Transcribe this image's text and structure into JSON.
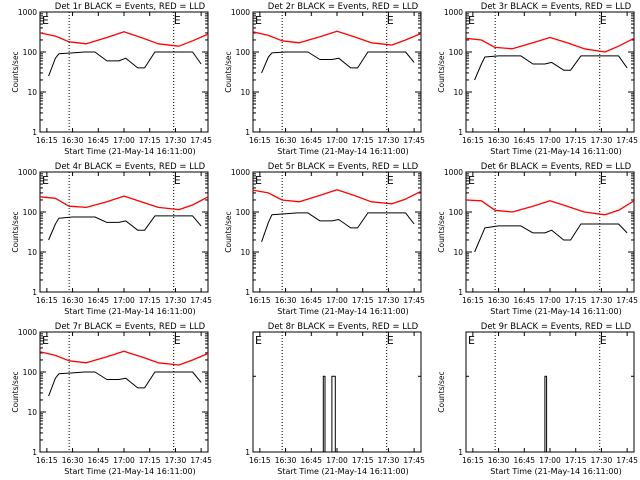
{
  "colors": {
    "events": "#000000",
    "lld": "#ff0000",
    "frame": "#000000",
    "marker": "#000000"
  },
  "xtick_labels": [
    "16:15",
    "16:30",
    "16:45",
    "17:00",
    "17:15",
    "17:30",
    "17:45"
  ],
  "ytick_labels": [
    "1",
    "10",
    "100",
    "1000"
  ],
  "xlabel": "Start Time (21-May-14 16:11:00)",
  "ylabel": "Counts/sec",
  "marker_letter": "E",
  "panels": [
    {
      "title": "Det 1r BLACK = Events, RED = LLD",
      "show_ylabel": true
    },
    {
      "title": "Det 2r BLACK = Events, RED = LLD",
      "show_ylabel": true
    },
    {
      "title": "Det 3r BLACK = Events, RED = LLD",
      "show_ylabel": true
    },
    {
      "title": "Det 4r BLACK = Events, RED = LLD",
      "show_ylabel": true
    },
    {
      "title": "Det 5r BLACK = Events, RED = LLD",
      "show_ylabel": true
    },
    {
      "title": "Det 6r BLACK = Events, RED = LLD",
      "show_ylabel": true
    },
    {
      "title": "Det 7r BLACK = Events, RED = LLD",
      "show_ylabel": true
    },
    {
      "title": "Det 8r BLACK = Events, RED = LLD",
      "show_ylabel": false
    },
    {
      "title": "Det 9r BLACK = Events, RED = LLD",
      "show_ylabel": true
    }
  ],
  "chart_data": [
    {
      "panel": "Det 1r",
      "type": "line",
      "x_range": [
        "16:11",
        "17:49"
      ],
      "ylim": [
        1,
        1000
      ],
      "y_scale": "log",
      "markers_x": [
        "16:28",
        "17:29"
      ],
      "series": [
        {
          "name": "LLD",
          "color": "#ff0000",
          "x": [
            "16:11",
            "16:20",
            "16:28",
            "16:38",
            "16:50",
            "17:00",
            "17:10",
            "17:20",
            "17:32",
            "17:40",
            "17:49"
          ],
          "y": [
            300,
            250,
            180,
            160,
            230,
            320,
            230,
            160,
            140,
            190,
            280
          ]
        },
        {
          "name": "Events",
          "color": "#000000",
          "x": [
            "16:16",
            "16:20",
            "16:22",
            "16:30",
            "16:37",
            "16:43",
            "16:50",
            "16:57",
            "17:01",
            "17:08",
            "17:12",
            "17:18",
            "17:30",
            "17:40",
            "17:45"
          ],
          "y": [
            25,
            70,
            90,
            95,
            100,
            100,
            60,
            60,
            70,
            40,
            40,
            100,
            100,
            100,
            50
          ]
        }
      ]
    },
    {
      "panel": "Det 2r",
      "type": "line",
      "x_range": [
        "16:11",
        "17:49"
      ],
      "ylim": [
        1,
        1000
      ],
      "y_scale": "log",
      "markers_x": [
        "16:28",
        "17:29"
      ],
      "series": [
        {
          "name": "LLD",
          "color": "#ff0000",
          "x": [
            "16:11",
            "16:20",
            "16:28",
            "16:38",
            "16:50",
            "17:00",
            "17:10",
            "17:20",
            "17:32",
            "17:40",
            "17:49"
          ],
          "y": [
            320,
            260,
            190,
            170,
            240,
            330,
            240,
            170,
            150,
            200,
            290
          ]
        },
        {
          "name": "Events",
          "color": "#000000",
          "x": [
            "16:16",
            "16:20",
            "16:22",
            "16:30",
            "16:37",
            "16:43",
            "16:50",
            "16:57",
            "17:01",
            "17:08",
            "17:12",
            "17:18",
            "17:30",
            "17:40",
            "17:45"
          ],
          "y": [
            30,
            75,
            95,
            100,
            100,
            100,
            65,
            65,
            70,
            40,
            40,
            100,
            100,
            100,
            55
          ]
        }
      ]
    },
    {
      "panel": "Det 3r",
      "type": "line",
      "x_range": [
        "16:11",
        "17:49"
      ],
      "ylim": [
        1,
        1000
      ],
      "y_scale": "log",
      "markers_x": [
        "16:28",
        "17:29"
      ],
      "series": [
        {
          "name": "LLD",
          "color": "#ff0000",
          "x": [
            "16:11",
            "16:20",
            "16:28",
            "16:38",
            "16:50",
            "17:00",
            "17:10",
            "17:20",
            "17:32",
            "17:40",
            "17:49"
          ],
          "y": [
            220,
            200,
            130,
            120,
            170,
            230,
            170,
            120,
            100,
            140,
            220
          ]
        },
        {
          "name": "Events",
          "color": "#000000",
          "x": [
            "16:16",
            "16:20",
            "16:22",
            "16:30",
            "16:37",
            "16:43",
            "16:50",
            "16:57",
            "17:01",
            "17:08",
            "17:12",
            "17:18",
            "17:30",
            "17:40",
            "17:45"
          ],
          "y": [
            20,
            50,
            75,
            80,
            80,
            80,
            50,
            50,
            55,
            35,
            35,
            80,
            80,
            80,
            40
          ]
        }
      ]
    },
    {
      "panel": "Det 4r",
      "type": "line",
      "x_range": [
        "16:11",
        "17:49"
      ],
      "ylim": [
        1,
        1000
      ],
      "y_scale": "log",
      "markers_x": [
        "16:28",
        "17:29"
      ],
      "series": [
        {
          "name": "LLD",
          "color": "#ff0000",
          "x": [
            "16:11",
            "16:20",
            "16:28",
            "16:38",
            "16:50",
            "17:00",
            "17:10",
            "17:20",
            "17:32",
            "17:40",
            "17:49"
          ],
          "y": [
            240,
            220,
            140,
            130,
            180,
            250,
            180,
            130,
            115,
            150,
            240
          ]
        },
        {
          "name": "Events",
          "color": "#000000",
          "x": [
            "16:16",
            "16:20",
            "16:22",
            "16:30",
            "16:37",
            "16:43",
            "16:50",
            "16:57",
            "17:01",
            "17:08",
            "17:12",
            "17:18",
            "17:30",
            "17:40",
            "17:45"
          ],
          "y": [
            20,
            50,
            70,
            75,
            75,
            75,
            55,
            55,
            60,
            35,
            35,
            80,
            80,
            80,
            45
          ]
        }
      ]
    },
    {
      "panel": "Det 5r",
      "type": "line",
      "x_range": [
        "16:11",
        "17:49"
      ],
      "ylim": [
        1,
        1000
      ],
      "y_scale": "log",
      "markers_x": [
        "16:28",
        "17:29"
      ],
      "series": [
        {
          "name": "LLD",
          "color": "#ff0000",
          "x": [
            "16:11",
            "16:20",
            "16:28",
            "16:38",
            "16:50",
            "17:00",
            "17:10",
            "17:20",
            "17:32",
            "17:40",
            "17:49"
          ],
          "y": [
            350,
            300,
            200,
            180,
            260,
            360,
            260,
            180,
            160,
            210,
            330
          ]
        },
        {
          "name": "Events",
          "color": "#000000",
          "x": [
            "16:16",
            "16:20",
            "16:22",
            "16:30",
            "16:37",
            "16:43",
            "16:50",
            "16:57",
            "17:01",
            "17:08",
            "17:12",
            "17:18",
            "17:30",
            "17:40",
            "17:45"
          ],
          "y": [
            18,
            55,
            85,
            90,
            95,
            95,
            60,
            60,
            65,
            40,
            40,
            95,
            95,
            95,
            50
          ]
        }
      ]
    },
    {
      "panel": "Det 6r",
      "type": "line",
      "x_range": [
        "16:11",
        "17:49"
      ],
      "ylim": [
        1,
        1000
      ],
      "y_scale": "log",
      "markers_x": [
        "16:28",
        "17:29"
      ],
      "series": [
        {
          "name": "LLD",
          "color": "#ff0000",
          "x": [
            "16:11",
            "16:20",
            "16:28",
            "16:38",
            "16:50",
            "17:00",
            "17:10",
            "17:20",
            "17:32",
            "17:40",
            "17:49"
          ],
          "y": [
            200,
            190,
            110,
            100,
            140,
            190,
            140,
            100,
            85,
            110,
            190
          ]
        },
        {
          "name": "Events",
          "color": "#000000",
          "x": [
            "16:16",
            "16:20",
            "16:22",
            "16:30",
            "16:37",
            "16:43",
            "16:50",
            "16:57",
            "17:01",
            "17:08",
            "17:12",
            "17:18",
            "17:30",
            "17:40",
            "17:45"
          ],
          "y": [
            10,
            25,
            40,
            45,
            45,
            45,
            30,
            30,
            35,
            20,
            20,
            50,
            50,
            50,
            30
          ]
        }
      ]
    },
    {
      "panel": "Det 7r",
      "type": "line",
      "x_range": [
        "16:11",
        "17:49"
      ],
      "ylim": [
        1,
        1000
      ],
      "y_scale": "log",
      "markers_x": [
        "16:28",
        "17:29"
      ],
      "series": [
        {
          "name": "LLD",
          "color": "#ff0000",
          "x": [
            "16:11",
            "16:20",
            "16:28",
            "16:38",
            "16:50",
            "17:00",
            "17:10",
            "17:20",
            "17:32",
            "17:40",
            "17:49"
          ],
          "y": [
            320,
            260,
            190,
            170,
            240,
            330,
            240,
            170,
            150,
            200,
            290
          ]
        },
        {
          "name": "Events",
          "color": "#000000",
          "x": [
            "16:16",
            "16:20",
            "16:22",
            "16:30",
            "16:37",
            "16:43",
            "16:50",
            "16:57",
            "17:01",
            "17:08",
            "17:12",
            "17:18",
            "17:30",
            "17:40",
            "17:45"
          ],
          "y": [
            25,
            70,
            90,
            95,
            100,
            100,
            65,
            65,
            70,
            40,
            40,
            100,
            100,
            100,
            55
          ]
        }
      ]
    },
    {
      "panel": "Det 8r",
      "type": "line",
      "x_range": [
        "16:11",
        "17:49"
      ],
      "ylim": [
        1,
        3
      ],
      "y_scale": "log",
      "markers_x": [
        "16:28",
        "17:29"
      ],
      "series": [
        {
          "name": "Events",
          "color": "#000000",
          "x": [
            "16:52",
            "16:52",
            "16:53",
            "16:53",
            "16:57",
            "16:57",
            "16:59",
            "16:59"
          ],
          "y": [
            1,
            2,
            2,
            1,
            1,
            2,
            2,
            1
          ]
        }
      ]
    },
    {
      "panel": "Det 9r",
      "type": "line",
      "x_range": [
        "16:11",
        "17:49"
      ],
      "ylim": [
        1,
        3
      ],
      "y_scale": "log",
      "markers_x": [
        "16:28",
        "17:29"
      ],
      "series": [
        {
          "name": "Events",
          "color": "#000000",
          "x": [
            "16:57",
            "16:57",
            "16:58",
            "16:58"
          ],
          "y": [
            1,
            2,
            2,
            1
          ]
        }
      ]
    }
  ]
}
